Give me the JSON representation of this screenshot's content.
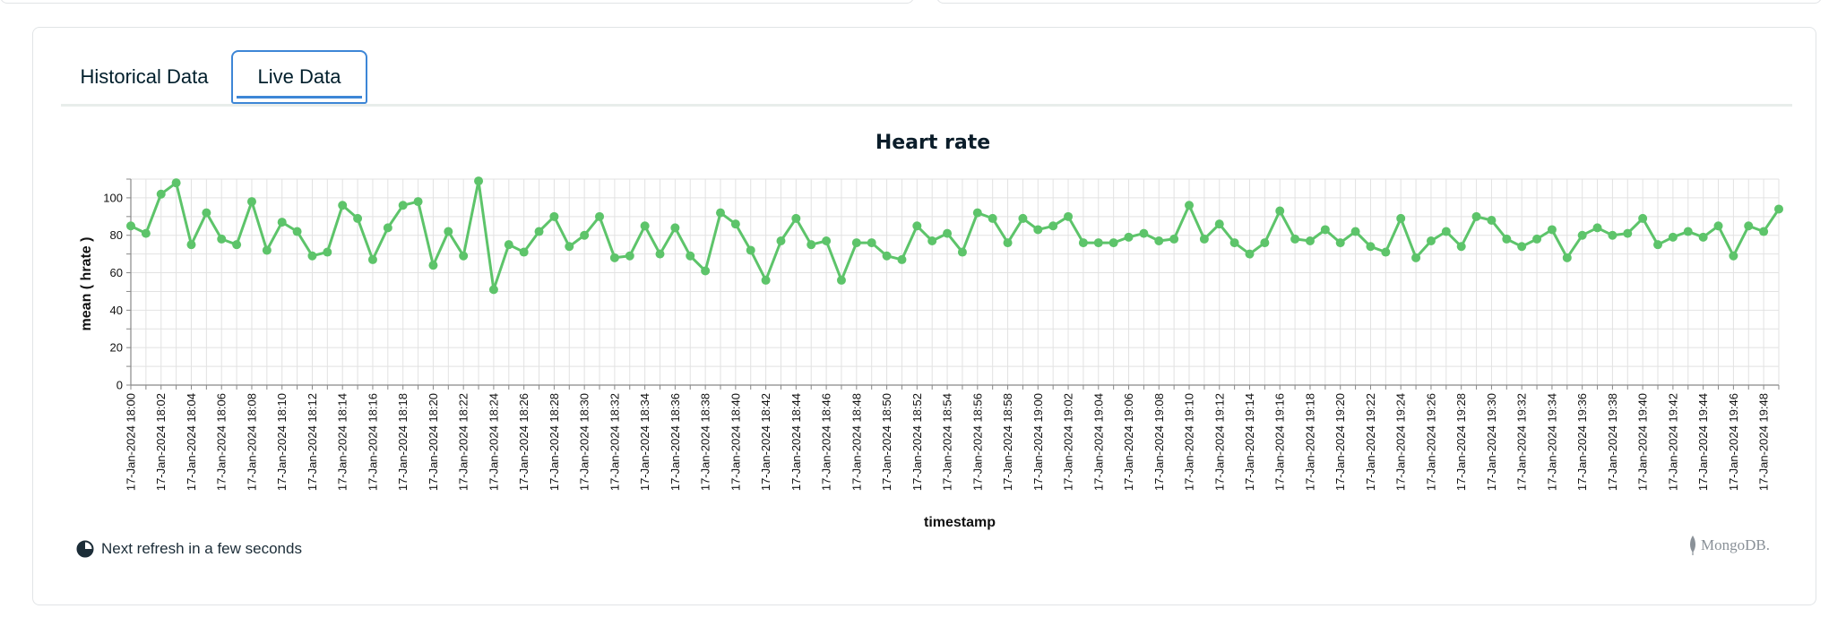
{
  "tabs": [
    {
      "label": "Historical Data",
      "active": false
    },
    {
      "label": "Live Data",
      "active": true
    }
  ],
  "footer": {
    "refresh_text": "Next refresh in a few seconds",
    "brand": "MongoDB."
  },
  "colors": {
    "series": "#5dc46a",
    "accent": "#3d86d6"
  },
  "chart_data": {
    "type": "line",
    "title": "Heart rate",
    "xlabel": "timestamp",
    "ylabel": "mean ( hrate )",
    "ylim": [
      0,
      110
    ],
    "yticks": [
      0,
      20,
      40,
      60,
      80,
      100
    ],
    "grid": true,
    "x_start": "17-Jan-2024 18:00",
    "x_step_minutes": 1,
    "x_ticks": [
      "17-Jan-2024 18:00",
      "17-Jan-2024 18:02",
      "17-Jan-2024 18:04",
      "17-Jan-2024 18:06",
      "17-Jan-2024 18:08",
      "17-Jan-2024 18:10",
      "17-Jan-2024 18:12",
      "17-Jan-2024 18:14",
      "17-Jan-2024 18:16",
      "17-Jan-2024 18:18",
      "17-Jan-2024 18:20",
      "17-Jan-2024 18:22",
      "17-Jan-2024 18:24",
      "17-Jan-2024 18:26",
      "17-Jan-2024 18:28",
      "17-Jan-2024 18:30",
      "17-Jan-2024 18:32",
      "17-Jan-2024 18:34",
      "17-Jan-2024 18:36",
      "17-Jan-2024 18:38",
      "17-Jan-2024 18:40",
      "17-Jan-2024 18:42",
      "17-Jan-2024 18:44",
      "17-Jan-2024 18:46",
      "17-Jan-2024 18:48",
      "17-Jan-2024 18:50",
      "17-Jan-2024 18:52",
      "17-Jan-2024 18:54",
      "17-Jan-2024 18:56",
      "17-Jan-2024 18:58",
      "17-Jan-2024 19:00",
      "17-Jan-2024 19:02",
      "17-Jan-2024 19:04",
      "17-Jan-2024 19:06",
      "17-Jan-2024 19:08",
      "17-Jan-2024 19:10",
      "17-Jan-2024 19:12",
      "17-Jan-2024 19:14",
      "17-Jan-2024 19:16",
      "17-Jan-2024 19:18",
      "17-Jan-2024 19:20",
      "17-Jan-2024 19:22",
      "17-Jan-2024 19:24",
      "17-Jan-2024 19:26",
      "17-Jan-2024 19:28",
      "17-Jan-2024 19:30",
      "17-Jan-2024 19:32",
      "17-Jan-2024 19:34",
      "17-Jan-2024 19:36",
      "17-Jan-2024 19:38",
      "17-Jan-2024 19:40",
      "17-Jan-2024 19:42",
      "17-Jan-2024 19:44",
      "17-Jan-2024 19:46",
      "17-Jan-2024 19:48"
    ],
    "values": [
      85,
      81,
      102,
      108,
      75,
      92,
      78,
      75,
      98,
      72,
      87,
      82,
      69,
      71,
      96,
      89,
      67,
      84,
      96,
      98,
      64,
      82,
      69,
      109,
      51,
      75,
      71,
      82,
      90,
      74,
      80,
      90,
      68,
      69,
      85,
      70,
      84,
      69,
      61,
      92,
      86,
      72,
      56,
      77,
      89,
      75,
      77,
      56,
      76,
      76,
      69,
      67,
      85,
      77,
      81,
      71,
      92,
      89,
      76,
      89,
      83,
      85,
      90,
      76,
      76,
      76,
      79,
      81,
      77,
      78,
      96,
      78,
      86,
      76,
      70,
      76,
      93,
      78,
      77,
      83,
      76,
      82,
      74,
      71,
      89,
      68,
      77,
      82,
      74,
      90,
      88,
      78,
      74,
      78,
      83,
      68,
      80,
      84,
      80,
      81,
      89,
      75,
      79,
      82,
      79,
      85,
      69,
      85,
      82,
      94
    ]
  }
}
